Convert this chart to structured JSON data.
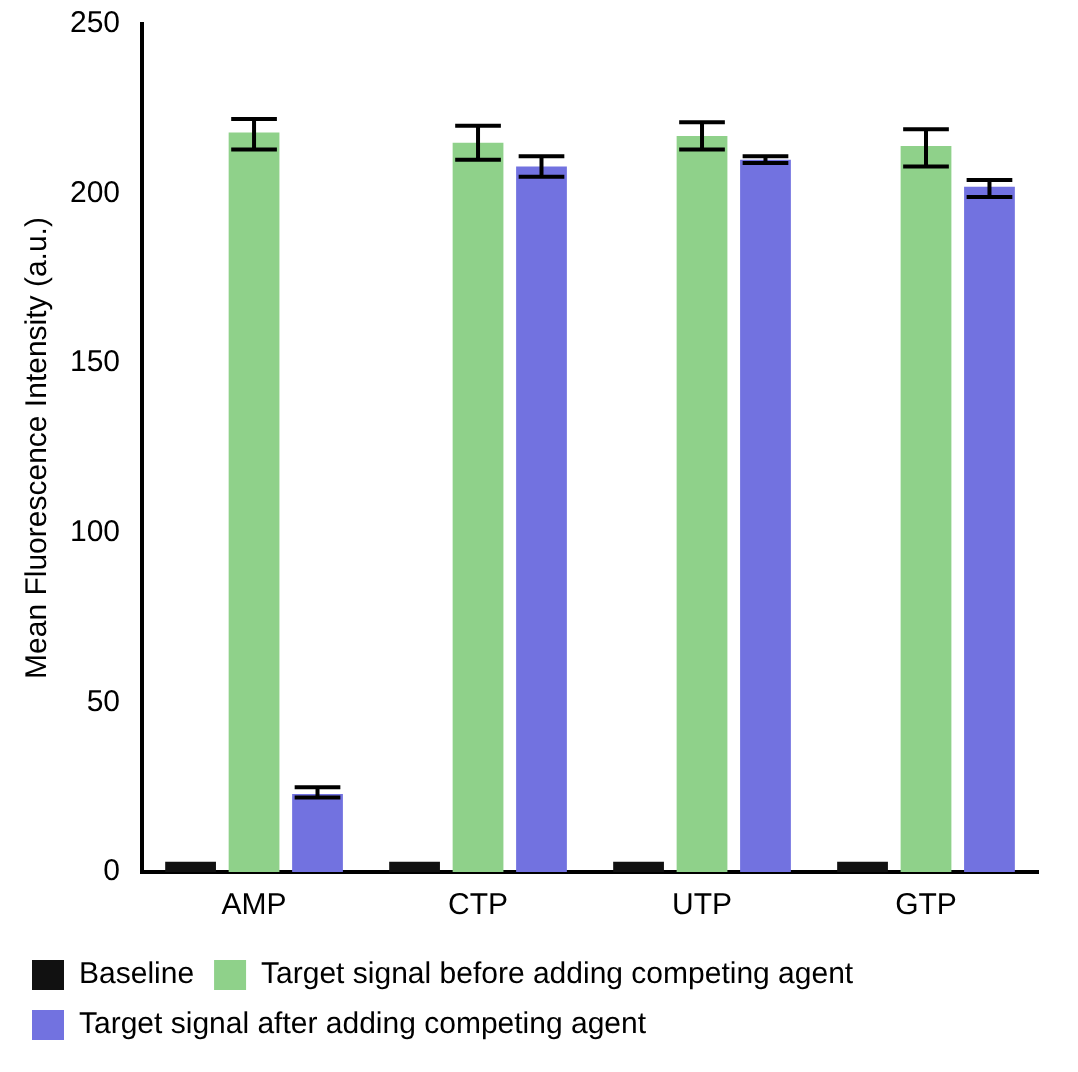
{
  "chart_data": {
    "type": "bar",
    "ylabel": "Mean Fluorescence Intensity (a.u.)",
    "categories": [
      "AMP",
      "CTP",
      "UTP",
      "GTP"
    ],
    "series": [
      {
        "name": "Baseline",
        "color": "#111111",
        "values": [
          3,
          3,
          3,
          3
        ]
      },
      {
        "name": "Target signal before adding competing agent",
        "color": "#8fd18a",
        "values": [
          218,
          215,
          217,
          214
        ],
        "errors": [
          [
            213,
            222
          ],
          [
            210,
            220
          ],
          [
            213,
            221
          ],
          [
            208,
            219
          ]
        ]
      },
      {
        "name": "Target signal after adding competing agent",
        "color": "#7272e0",
        "values": [
          23,
          208,
          210,
          202
        ],
        "errors": [
          [
            22,
            25
          ],
          [
            205,
            211
          ],
          [
            209,
            211
          ],
          [
            199,
            204
          ]
        ]
      }
    ],
    "ylim": [
      0,
      250
    ],
    "yticks": [
      0,
      50,
      100,
      150,
      200,
      250
    ],
    "grid": false,
    "legend": "bottom"
  }
}
